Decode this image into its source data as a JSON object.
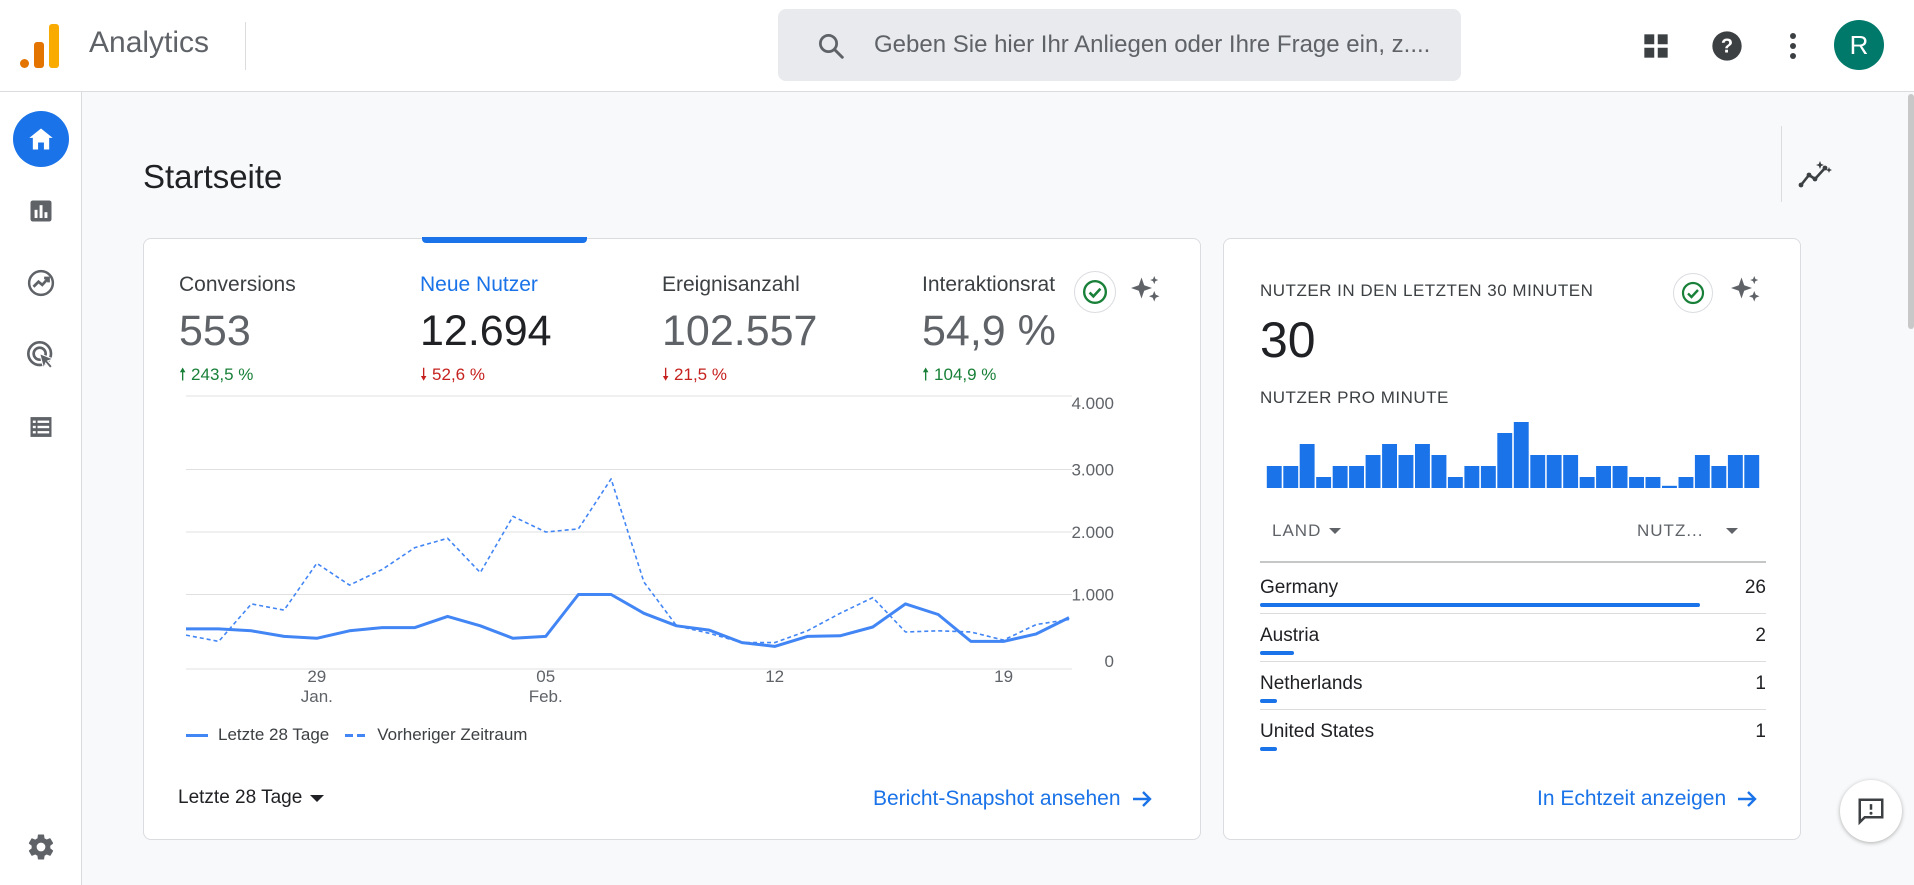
{
  "header": {
    "app_title": "Analytics",
    "search_placeholder": "Geben Sie hier Ihr Anliegen oder Ihre Frage ein, z....",
    "avatar_letter": "R"
  },
  "sidebar": {
    "items": [
      {
        "name": "home",
        "active": true
      },
      {
        "name": "reports"
      },
      {
        "name": "explore"
      },
      {
        "name": "advertising"
      },
      {
        "name": "configure"
      }
    ]
  },
  "page": {
    "title": "Startseite"
  },
  "overview": {
    "metrics": [
      {
        "label": "Conversions",
        "value": "553",
        "change": "243,5 %",
        "direction": "up"
      },
      {
        "label": "Neue Nutzer",
        "value": "12.694",
        "change": "52,6 %",
        "direction": "down",
        "selected": true
      },
      {
        "label": "Ereignisanzahl",
        "value": "102.557",
        "change": "21,5 %",
        "direction": "down"
      },
      {
        "label": "Interaktionsrat",
        "value": "54,9 %",
        "change": "104,9 %",
        "direction": "up"
      }
    ],
    "legend": {
      "current": "Letzte 28 Tage",
      "previous": "Vorheriger Zeitraum"
    },
    "date_range": "Letzte 28 Tage",
    "snapshot_link": "Bericht-Snapshot ansehen"
  },
  "chart_data": {
    "type": "line",
    "ylim": [
      0,
      4000
    ],
    "ytick_labels": [
      "4.000",
      "3.000",
      "2.000",
      "1.000",
      "0"
    ],
    "yticks": [
      4000,
      3000,
      2000,
      1000,
      0
    ],
    "xtick_labels": [
      {
        "line1": "29",
        "line2": "Jan.",
        "index": 4
      },
      {
        "line1": "05",
        "line2": "Feb.",
        "index": 11
      },
      {
        "line1": "12",
        "line2": "",
        "index": 18
      },
      {
        "line1": "19",
        "line2": "",
        "index": 25
      }
    ],
    "x_count": 28,
    "series": [
      {
        "name": "Letzte 28 Tage",
        "style": "solid",
        "values": [
          450,
          450,
          420,
          330,
          300,
          420,
          470,
          470,
          650,
          500,
          300,
          330,
          1000,
          1000,
          700,
          500,
          430,
          230,
          170,
          330,
          340,
          480,
          850,
          680,
          250,
          250,
          370,
          630
        ]
      },
      {
        "name": "Vorheriger Zeitraum",
        "style": "dashed",
        "values": [
          350,
          250,
          850,
          750,
          1500,
          1150,
          1400,
          1750,
          1900,
          1350,
          2250,
          2000,
          2050,
          2850,
          1200,
          500,
          380,
          230,
          230,
          420,
          700,
          950,
          400,
          420,
          400,
          270,
          520,
          600
        ]
      }
    ]
  },
  "realtime": {
    "title": "NUTZER IN DEN LETZTEN 30 MINUTEN",
    "value": "30",
    "subtitle": "NUTZER PRO MINUTE",
    "per_minute": [
      1,
      1,
      2,
      0.5,
      1,
      1,
      1.5,
      2,
      1.5,
      2,
      1.5,
      0.5,
      1,
      1,
      2.5,
      3,
      1.5,
      1.5,
      1.5,
      0.5,
      1,
      1,
      0.5,
      0.5,
      0.1,
      0.5,
      1.5,
      1,
      1.5,
      1.5
    ],
    "col_country": "LAND",
    "col_users": "NUTZ...",
    "rows": [
      {
        "country": "Germany",
        "count": "26",
        "share": 1.0
      },
      {
        "country": "Austria",
        "count": "2",
        "share": 0.077
      },
      {
        "country": "Netherlands",
        "count": "1",
        "share": 0.038
      },
      {
        "country": "United States",
        "count": "1",
        "share": 0.038
      }
    ],
    "realtime_link": "In Echtzeit anzeigen"
  }
}
